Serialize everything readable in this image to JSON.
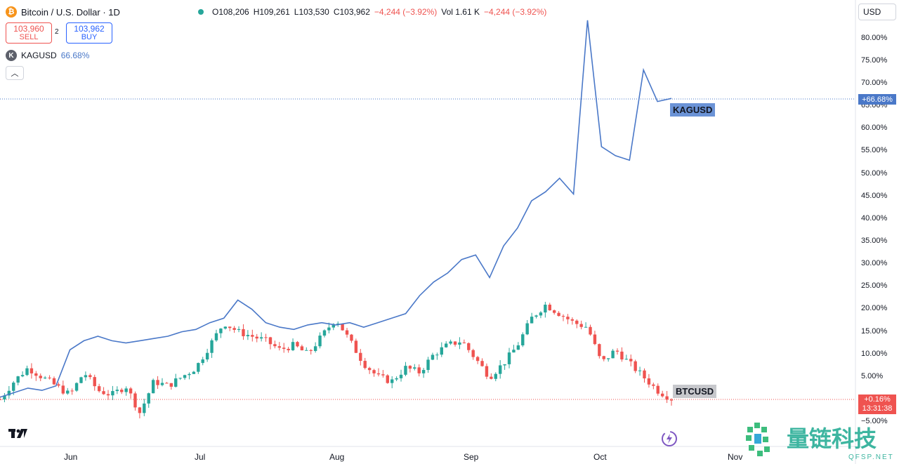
{
  "header": {
    "symbol_icon": "bitcoin-icon",
    "title": "Bitcoin / U.S. Dollar · 1D",
    "open": "O108,206",
    "high": "H109,261",
    "low": "L103,530",
    "close": "C103,962",
    "change": "−4,244 (−3.92%)",
    "volume": "Vol 1.61 K",
    "vol_change": "−4,244 (−3.92%)"
  },
  "trade": {
    "sell_price": "103,960",
    "sell_label": "SELL",
    "spread": "2",
    "buy_price": "103,962",
    "buy_label": "BUY"
  },
  "compare": {
    "symbol": "KAGUSD",
    "value": "66.68%"
  },
  "currency": "USD",
  "y_axis_labels": [
    "80.00%",
    "75.00%",
    "70.00%",
    "65.00%",
    "60.00%",
    "55.00%",
    "50.00%",
    "45.00%",
    "40.00%",
    "35.00%",
    "30.00%",
    "25.00%",
    "20.00%",
    "15.00%",
    "10.00%",
    "5.00%",
    "−5.00%"
  ],
  "x_axis_labels": [
    "Jun",
    "Jul",
    "Aug",
    "Sep",
    "Oct",
    "Nov"
  ],
  "tags": {
    "kag": "KAGUSD",
    "btc": "BTCUSD",
    "kag_price": "+66.68%",
    "btc_price": "+0.16%",
    "btc_countdown": "13:31:38"
  },
  "watermark": {
    "text": "量链科技",
    "sub": "QFSP.NET"
  },
  "colors": {
    "up": "#26a69a",
    "down": "#ef5350",
    "kag_line": "#4a78c8"
  },
  "chart_data": {
    "type": "line",
    "ylabel": "% change",
    "ylim": [
      -5,
      85
    ],
    "x": [
      "2025-05-21",
      "2025-05-24",
      "2025-05-28",
      "2025-05-31",
      "2025-06-04",
      "2025-06-07",
      "2025-06-11",
      "2025-06-14",
      "2025-06-18",
      "2025-06-21",
      "2025-06-25",
      "2025-06-28",
      "2025-07-02",
      "2025-07-05",
      "2025-07-09",
      "2025-07-12",
      "2025-07-16",
      "2025-07-19",
      "2025-07-23",
      "2025-07-26",
      "2025-07-30",
      "2025-08-02",
      "2025-08-06",
      "2025-08-09",
      "2025-08-13",
      "2025-08-16",
      "2025-08-20",
      "2025-08-23",
      "2025-08-27",
      "2025-08-30",
      "2025-09-03",
      "2025-09-06",
      "2025-09-10",
      "2025-09-13",
      "2025-09-17",
      "2025-09-20",
      "2025-09-24",
      "2025-09-27",
      "2025-10-01",
      "2025-10-04",
      "2025-10-06",
      "2025-10-07",
      "2025-10-09",
      "2025-10-11",
      "2025-10-13",
      "2025-10-14",
      "2025-10-15",
      "2025-10-16",
      "2025-10-17"
    ],
    "series": [
      {
        "name": "KAGUSD",
        "values": [
          0.5,
          1.5,
          2.5,
          2,
          3,
          11,
          13,
          14,
          13,
          12.5,
          13,
          13.5,
          14,
          15,
          15.5,
          17,
          18,
          22,
          20,
          17,
          16,
          15.5,
          16.5,
          17,
          16.5,
          17,
          16,
          17,
          18,
          19,
          23,
          26,
          28,
          31,
          32,
          27,
          34,
          38,
          44,
          46,
          49,
          45.5,
          84,
          56,
          54,
          53,
          73,
          66,
          66.68
        ]
      },
      {
        "name": "BTCUSD",
        "values": [
          0,
          4,
          7,
          5,
          3,
          1,
          6,
          2,
          1,
          3,
          -3,
          4,
          3,
          5,
          7,
          12,
          17,
          15,
          14,
          13,
          11,
          12,
          10,
          14,
          18,
          13,
          8,
          5,
          4,
          7,
          6,
          10,
          12,
          13,
          9,
          5,
          8,
          12,
          18,
          21,
          19,
          17,
          16,
          8,
          11,
          8,
          5,
          2,
          0.16
        ]
      }
    ]
  }
}
